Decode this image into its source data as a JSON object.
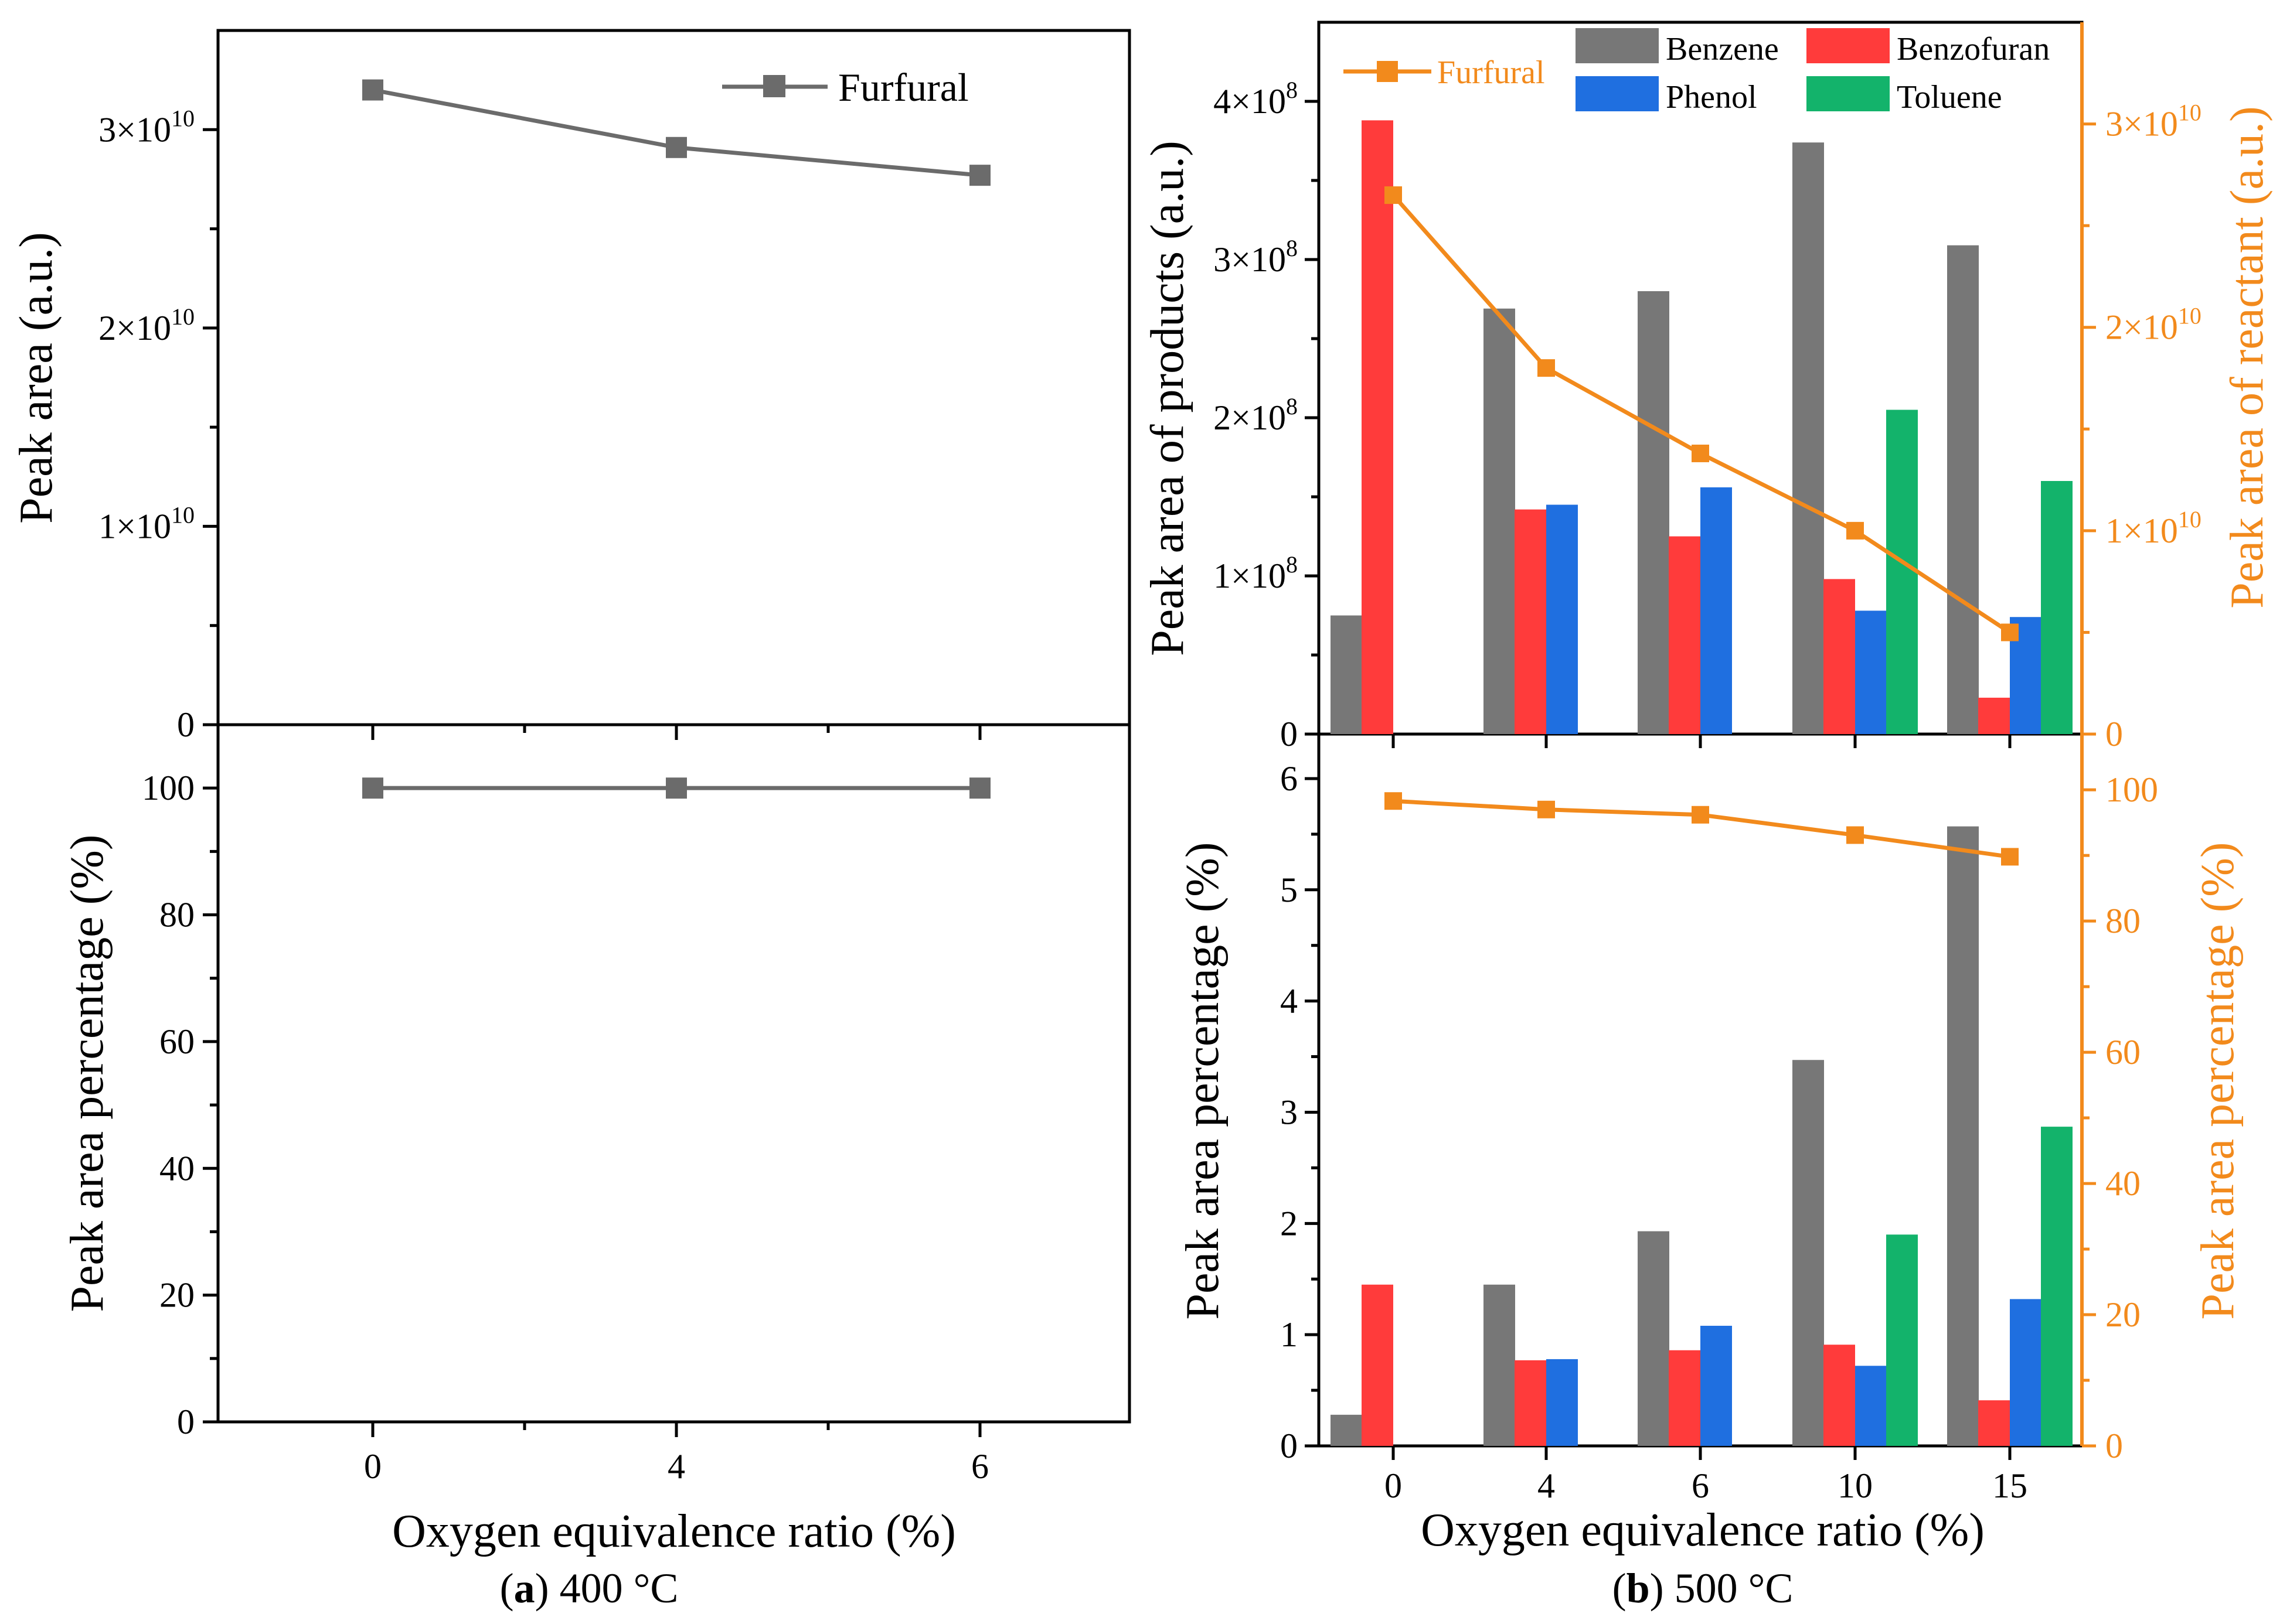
{
  "colors": {
    "benzene": "#777777",
    "benzofuran": "#ff3b3b",
    "phenol": "#1f6fe0",
    "toluene": "#13b36b",
    "furfural_a": "#6b6b6b",
    "furfural_b": "#f28a1c"
  },
  "panel_a": {
    "caption_letter": "a",
    "caption_text": " 400 °C",
    "xlabel": "Oxygen equivalence ratio (%)",
    "top_ylabel": "Peak area (a.u.)",
    "bottom_ylabel": "Peak area percentage (%)",
    "top_legend": "Furfural"
  },
  "panel_b": {
    "caption_letter": "b",
    "caption_text": " 500 °C",
    "xlabel": "Oxygen equivalence ratio (%)",
    "top_ylabel_left": "Peak area of products (a.u.)",
    "top_ylabel_right": "Peak area of reactant (a.u.)",
    "bottom_ylabel_left": "Peak area percentage (%)",
    "bottom_ylabel_right": "Peak area percentage (%)",
    "legend": {
      "furfural": "Furfural",
      "benzene": "Benzene",
      "benzofuran": "Benzofuran",
      "phenol": "Phenol",
      "toluene": "Toluene"
    }
  },
  "chart_data": [
    {
      "id": "a-top",
      "type": "line",
      "title": "",
      "xlabel": "Oxygen equivalence ratio (%)",
      "ylabel": "Peak area (a.u.)",
      "categories": [
        "0",
        "4",
        "6"
      ],
      "series": [
        {
          "name": "Furfural",
          "values": [
            32000000000.0,
            29100000000.0,
            27700000000.0
          ]
        }
      ],
      "ylim": [
        0,
        35000000000.0
      ],
      "yticks": [
        "0",
        "1×10^10",
        "2×10^10",
        "3×10^10"
      ]
    },
    {
      "id": "a-bottom",
      "type": "line",
      "xlabel": "Oxygen equivalence ratio (%)",
      "ylabel": "Peak area percentage (%)",
      "categories": [
        "0",
        "4",
        "6"
      ],
      "series": [
        {
          "name": "Furfural",
          "values": [
            100,
            100,
            100
          ]
        }
      ],
      "ylim": [
        0,
        110
      ],
      "yticks": [
        "0",
        "20",
        "40",
        "60",
        "80",
        "100"
      ]
    },
    {
      "id": "b-top",
      "type": "bar",
      "xlabel": "Oxygen equivalence ratio (%)",
      "ylabel": "Peak area of products (a.u.)",
      "y2label": "Peak area of reactant (a.u.)",
      "categories": [
        "0",
        "4",
        "6",
        "10",
        "15"
      ],
      "series": [
        {
          "name": "Benzene",
          "values": [
            75000000.0,
            269000000.0,
            280000000.0,
            374000000.0,
            309000000.0
          ]
        },
        {
          "name": "Benzofuran",
          "values": [
            388000000.0,
            142000000.0,
            125000000.0,
            98000000.0,
            23000000.0
          ]
        },
        {
          "name": "Phenol",
          "values": [
            0,
            145000000.0,
            156000000.0,
            78000000.0,
            74000000.0
          ]
        },
        {
          "name": "Toluene",
          "values": [
            0,
            0,
            0,
            205000000.0,
            160000000.0
          ]
        },
        {
          "name": "Furfural",
          "axis": "right",
          "type": "line",
          "values": [
            26500000000.0,
            18000000000.0,
            13800000000.0,
            10000000000.0,
            5000000000.0
          ]
        }
      ],
      "ylim": [
        0,
        450000000.0
      ],
      "y2lim": [
        0,
        35000000000.0
      ],
      "yticks": [
        "0",
        "1×10^8",
        "2×10^8",
        "3×10^8",
        "4×10^8"
      ],
      "y2ticks": [
        "0",
        "1×10^10",
        "2×10^10",
        "3×10^10"
      ]
    },
    {
      "id": "b-bottom",
      "type": "bar",
      "xlabel": "Oxygen equivalence ratio (%)",
      "ylabel": "Peak area percentage (%)",
      "y2label": "Peak area percentage (%)",
      "categories": [
        "0",
        "4",
        "6",
        "10",
        "15"
      ],
      "series": [
        {
          "name": "Benzene",
          "values": [
            0.28,
            1.45,
            1.93,
            3.47,
            5.57
          ]
        },
        {
          "name": "Benzofuran",
          "values": [
            1.45,
            0.77,
            0.86,
            0.91,
            0.41
          ]
        },
        {
          "name": "Phenol",
          "values": [
            0,
            0.78,
            1.08,
            0.72,
            1.32
          ]
        },
        {
          "name": "Toluene",
          "values": [
            0,
            0,
            0,
            1.9,
            2.87
          ]
        },
        {
          "name": "Furfural",
          "axis": "right",
          "type": "line",
          "values": [
            98.3,
            97.0,
            96.2,
            93.1,
            89.8
          ]
        }
      ],
      "ylim": [
        0,
        6.4
      ],
      "y2lim": [
        0,
        108.5
      ],
      "yticks": [
        "0",
        "1",
        "2",
        "3",
        "4",
        "5",
        "6"
      ],
      "y2ticks": [
        "0",
        "20",
        "40",
        "60",
        "80",
        "100"
      ]
    }
  ]
}
